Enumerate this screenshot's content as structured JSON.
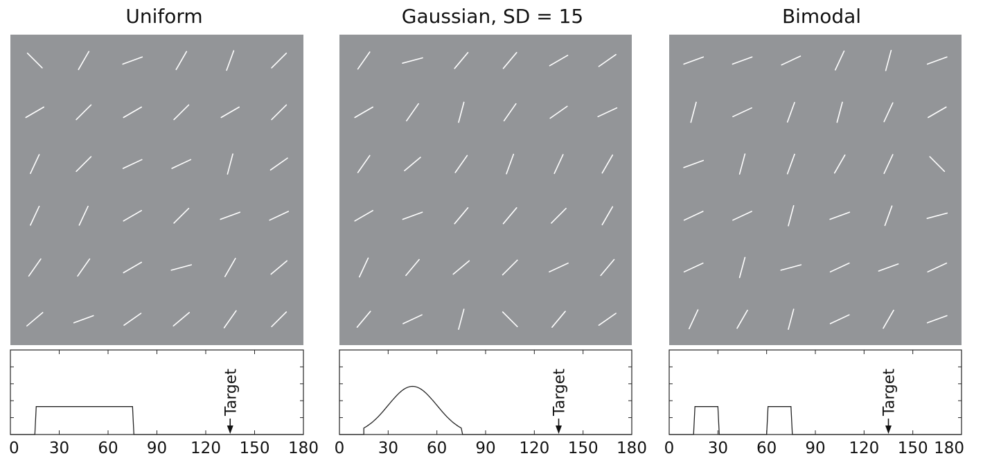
{
  "figure": {
    "display_colors": {
      "stimulus_background": "#939598",
      "line_segment": "#ffffff",
      "curve": "#222222"
    },
    "panels": [
      {
        "title": "Uniform",
        "distribution": {
          "type": "uniform",
          "range": [
            15,
            75
          ]
        },
        "orientations_deg": [
          [
            135,
            60,
            20,
            60,
            70,
            45
          ],
          [
            30,
            45,
            30,
            45,
            30,
            45
          ],
          [
            65,
            45,
            25,
            25,
            75,
            35
          ],
          [
            65,
            65,
            30,
            45,
            20,
            25
          ],
          [
            55,
            55,
            30,
            15,
            60,
            40
          ],
          [
            40,
            20,
            35,
            40,
            55,
            45
          ]
        ]
      },
      {
        "title": "Gaussian, SD = 15",
        "distribution": {
          "type": "gaussian",
          "mean": 45,
          "sd": 15,
          "range": [
            15,
            75
          ]
        },
        "orientations_deg": [
          [
            55,
            15,
            50,
            50,
            30,
            35
          ],
          [
            30,
            55,
            75,
            55,
            35,
            25
          ],
          [
            55,
            40,
            55,
            70,
            65,
            60
          ],
          [
            30,
            20,
            50,
            50,
            45,
            60
          ],
          [
            65,
            50,
            40,
            45,
            25,
            50
          ],
          [
            50,
            25,
            75,
            135,
            50,
            35
          ]
        ]
      },
      {
        "title": "Bimodal",
        "distribution": {
          "type": "bimodal",
          "ranges": [
            [
              15,
              30
            ],
            [
              60,
              75
            ]
          ]
        },
        "orientations_deg": [
          [
            20,
            20,
            25,
            65,
            75,
            20
          ],
          [
            75,
            25,
            70,
            75,
            65,
            30
          ],
          [
            20,
            75,
            70,
            60,
            65,
            135
          ],
          [
            25,
            25,
            75,
            20,
            70,
            15
          ],
          [
            25,
            75,
            15,
            25,
            20,
            25
          ],
          [
            65,
            60,
            75,
            25,
            60,
            20
          ]
        ]
      }
    ],
    "x_axis": {
      "min": 0,
      "max": 180,
      "ticks": [
        "0",
        "30",
        "60",
        "90",
        "120",
        "150",
        "180"
      ]
    },
    "target": {
      "label": "Target",
      "value": 135
    }
  }
}
